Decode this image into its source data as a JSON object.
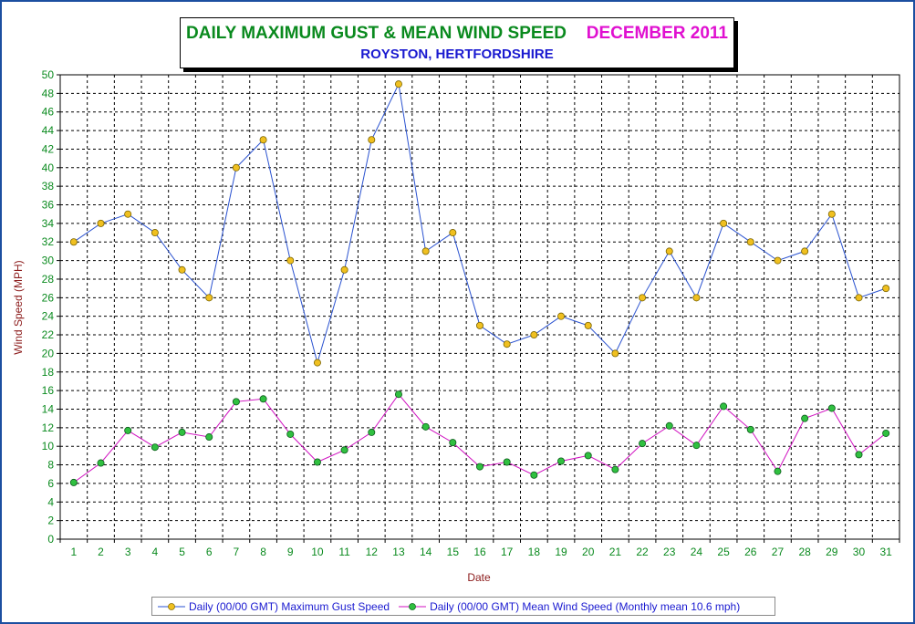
{
  "header": {
    "title": "DAILY MAXIMUM GUST & MEAN WIND SPEED",
    "month": "DECEMBER 2011",
    "subtitle": "ROYSTON, HERTFORDSHIRE"
  },
  "chart_data": {
    "type": "line",
    "title": "DAILY MAXIMUM GUST & MEAN WIND SPEED",
    "xlabel": "Date",
    "ylabel": "Wind Speed (MPH)",
    "ylim": [
      0,
      50
    ],
    "ytick_step": 2,
    "grid": true,
    "legend_position": "bottom",
    "x": [
      1,
      2,
      3,
      4,
      5,
      6,
      7,
      8,
      9,
      10,
      11,
      12,
      13,
      14,
      15,
      16,
      17,
      18,
      19,
      20,
      21,
      22,
      23,
      24,
      25,
      26,
      27,
      28,
      29,
      30,
      31
    ],
    "series": [
      {
        "name": "Daily (00/00 GMT) Maximum Gust Speed",
        "line_color": "#2a52d0",
        "marker_color": "#f0c020",
        "values": [
          32,
          34,
          35,
          33,
          29,
          26,
          40,
          43,
          30,
          19,
          29,
          43,
          49,
          31,
          33,
          23,
          21,
          22,
          24,
          23,
          20,
          26,
          31,
          26,
          34,
          32,
          30,
          31,
          35,
          26,
          27
        ]
      },
      {
        "name": "Daily (00/00 GMT) Mean Wind Speed (Monthly mean 10.6 mph)",
        "line_color": "#d010c0",
        "marker_color": "#30c040",
        "values": [
          6.1,
          8.2,
          11.7,
          9.9,
          11.5,
          11.0,
          14.8,
          15.1,
          11.3,
          8.3,
          9.6,
          11.5,
          15.6,
          12.1,
          10.4,
          7.8,
          8.3,
          6.9,
          8.4,
          9.0,
          7.5,
          10.3,
          12.2,
          10.1,
          14.3,
          11.8,
          7.3,
          13.0,
          14.1,
          9.1,
          11.4
        ]
      }
    ]
  }
}
